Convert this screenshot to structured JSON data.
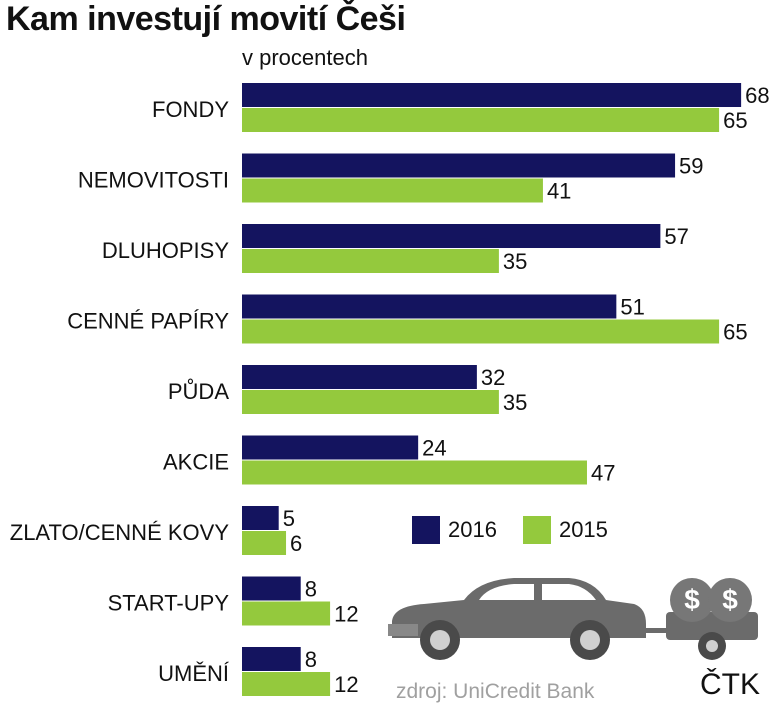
{
  "header": {
    "title": "Kam investují movití Češi",
    "subtitle": "v procentech"
  },
  "colors": {
    "series_2016": "#14145f",
    "series_2015": "#94c93d"
  },
  "chart_data": {
    "type": "bar",
    "orientation": "horizontal",
    "categories": [
      "FONDY",
      "NEMOVITOSTI",
      "DLUHOPISY",
      "CENNÉ PAPÍRY",
      "PŮDA",
      "AKCIE",
      "ZLATO/CENNÉ KOVY",
      "START-UPY",
      "UMĚNÍ"
    ],
    "series": [
      {
        "name": "2016",
        "values": [
          68,
          59,
          57,
          51,
          32,
          24,
          5,
          8,
          8
        ]
      },
      {
        "name": "2015",
        "values": [
          65,
          41,
          35,
          65,
          35,
          47,
          6,
          12,
          12
        ]
      }
    ],
    "title": "Kam investují movití Češi",
    "subtitle": "v procentech",
    "xlim": [
      0,
      70
    ],
    "grid": false,
    "legend_position": "lower-right"
  },
  "legend": {
    "items": [
      {
        "label": "2016"
      },
      {
        "label": "2015"
      }
    ]
  },
  "footer": {
    "source": "zdroj: UniCredit Bank",
    "agency": "ČTK"
  },
  "illustration": {
    "icon": "car-with-money-trailer-icon"
  }
}
